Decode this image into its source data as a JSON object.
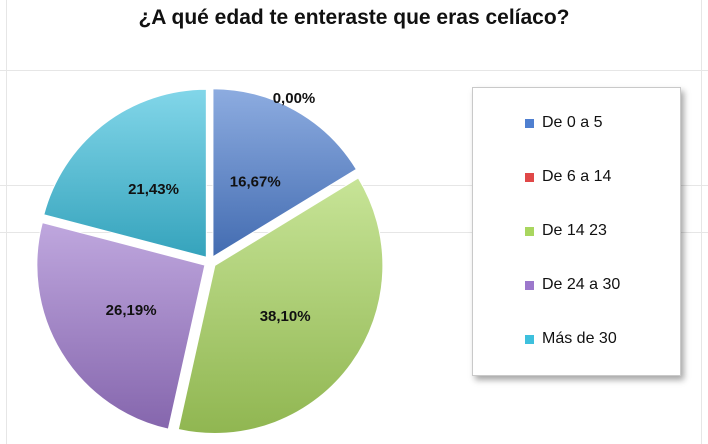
{
  "chart_data": {
    "type": "pie",
    "title": "¿A qué edad te enteraste que eras celíaco?",
    "categories": [
      "De 0 a 5",
      "De 6 a 14",
      "De 14 23",
      "De 24 a 30",
      "Más de 30"
    ],
    "values": [
      16.67,
      0.0,
      38.1,
      26.19,
      21.43
    ],
    "labels": [
      "16,67%",
      "0,00%",
      "38,10%",
      "26,19%",
      "21,43%"
    ],
    "colors": [
      "#4f7fd0",
      "#e04848",
      "#a9d65f",
      "#9c78cc",
      "#3ec0dd"
    ],
    "legend": "right",
    "exploded": true
  }
}
